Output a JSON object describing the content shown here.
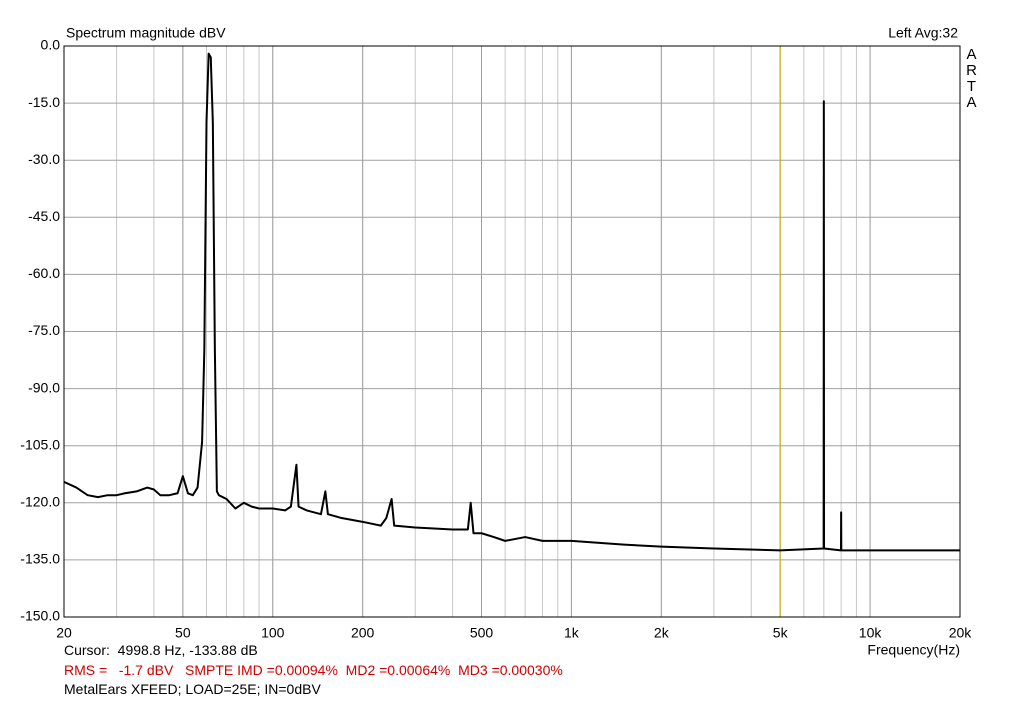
{
  "chart_data": {
    "type": "line",
    "title": "Spectrum magnitude dBV",
    "channel_info": "Left  Avg:32",
    "brand": "ARTA",
    "x_label": "Frequency(Hz)",
    "cursor": {
      "text": "Cursor:  4998.8 Hz, -133.88 dB",
      "x": 4998.8,
      "color": "#c8b400"
    },
    "measurements": "RMS =   -1.7 dBV   SMPTE IMD =0.00094%  MD2 =0.00064%  MD3 =0.00030%",
    "footer": "MetalEars XFEED; LOAD=25E; IN=0dBV",
    "x_scale": "log",
    "grid": true,
    "minor_grid": true,
    "xlim": [
      20,
      20000
    ],
    "ylim": [
      -150,
      0
    ],
    "xticks": [
      20,
      50,
      100,
      200,
      500,
      {
        "value": 1000,
        "label": "1k"
      },
      {
        "value": 2000,
        "label": "2k"
      },
      {
        "value": 5000,
        "label": "5k"
      },
      {
        "value": 10000,
        "label": "10k"
      },
      {
        "value": 20000,
        "label": "20k"
      }
    ],
    "yticks": [
      {
        "value": 0,
        "label": "0.0"
      },
      {
        "value": -15,
        "label": "-15.0"
      },
      {
        "value": -30,
        "label": "-30.0"
      },
      {
        "value": -45,
        "label": "-45.0"
      },
      {
        "value": -60,
        "label": "-60.0"
      },
      {
        "value": -75,
        "label": "-75.0"
      },
      {
        "value": -90,
        "label": "-90.0"
      },
      {
        "value": -105,
        "label": "-105.0"
      },
      {
        "value": -120,
        "label": "-120.0"
      },
      {
        "value": -135,
        "label": "-135.0"
      },
      {
        "value": -150,
        "label": "-150.0"
      }
    ],
    "x": [
      20,
      22,
      24,
      26,
      28,
      30,
      32,
      35,
      38,
      40,
      42,
      45,
      48,
      50,
      52,
      54,
      56,
      58,
      59,
      60,
      61,
      62,
      63,
      64,
      65,
      66,
      70,
      75,
      80,
      85,
      90,
      100,
      110,
      115,
      120,
      122,
      130,
      145,
      150,
      153,
      170,
      200,
      230,
      240,
      250,
      255,
      300,
      400,
      450,
      460,
      470,
      500,
      550,
      600,
      700,
      800,
      1000,
      1500,
      2000,
      3000,
      5000,
      6990,
      7000,
      7010,
      7990,
      8000,
      8010,
      10000,
      15000,
      20000
    ],
    "series": [
      {
        "name": "Spectrum",
        "color": "#000000",
        "values": [
          -114.5,
          -116,
          -118,
          -118.5,
          -118,
          -118,
          -117.5,
          -117,
          -116,
          -116.5,
          -118,
          -118,
          -117.5,
          -113,
          -117.5,
          -118,
          -116,
          -104,
          -80,
          -20,
          -2,
          -3,
          -20,
          -80,
          -117,
          -118,
          -119,
          -121.5,
          -120,
          -121,
          -121.5,
          -121.5,
          -122,
          -121,
          -110,
          -121,
          -122,
          -123,
          -117,
          -123,
          -124,
          -125,
          -126,
          -124,
          -119,
          -126,
          -126.5,
          -127,
          -127,
          -120,
          -128,
          -128,
          -129,
          -130,
          -129,
          -130,
          -130,
          -131,
          -131.5,
          -132,
          -132.5,
          -132,
          -14.5,
          -132,
          -132.5,
          -122.5,
          -132.5,
          -132.5,
          -132.5,
          -132.5
        ]
      }
    ]
  }
}
